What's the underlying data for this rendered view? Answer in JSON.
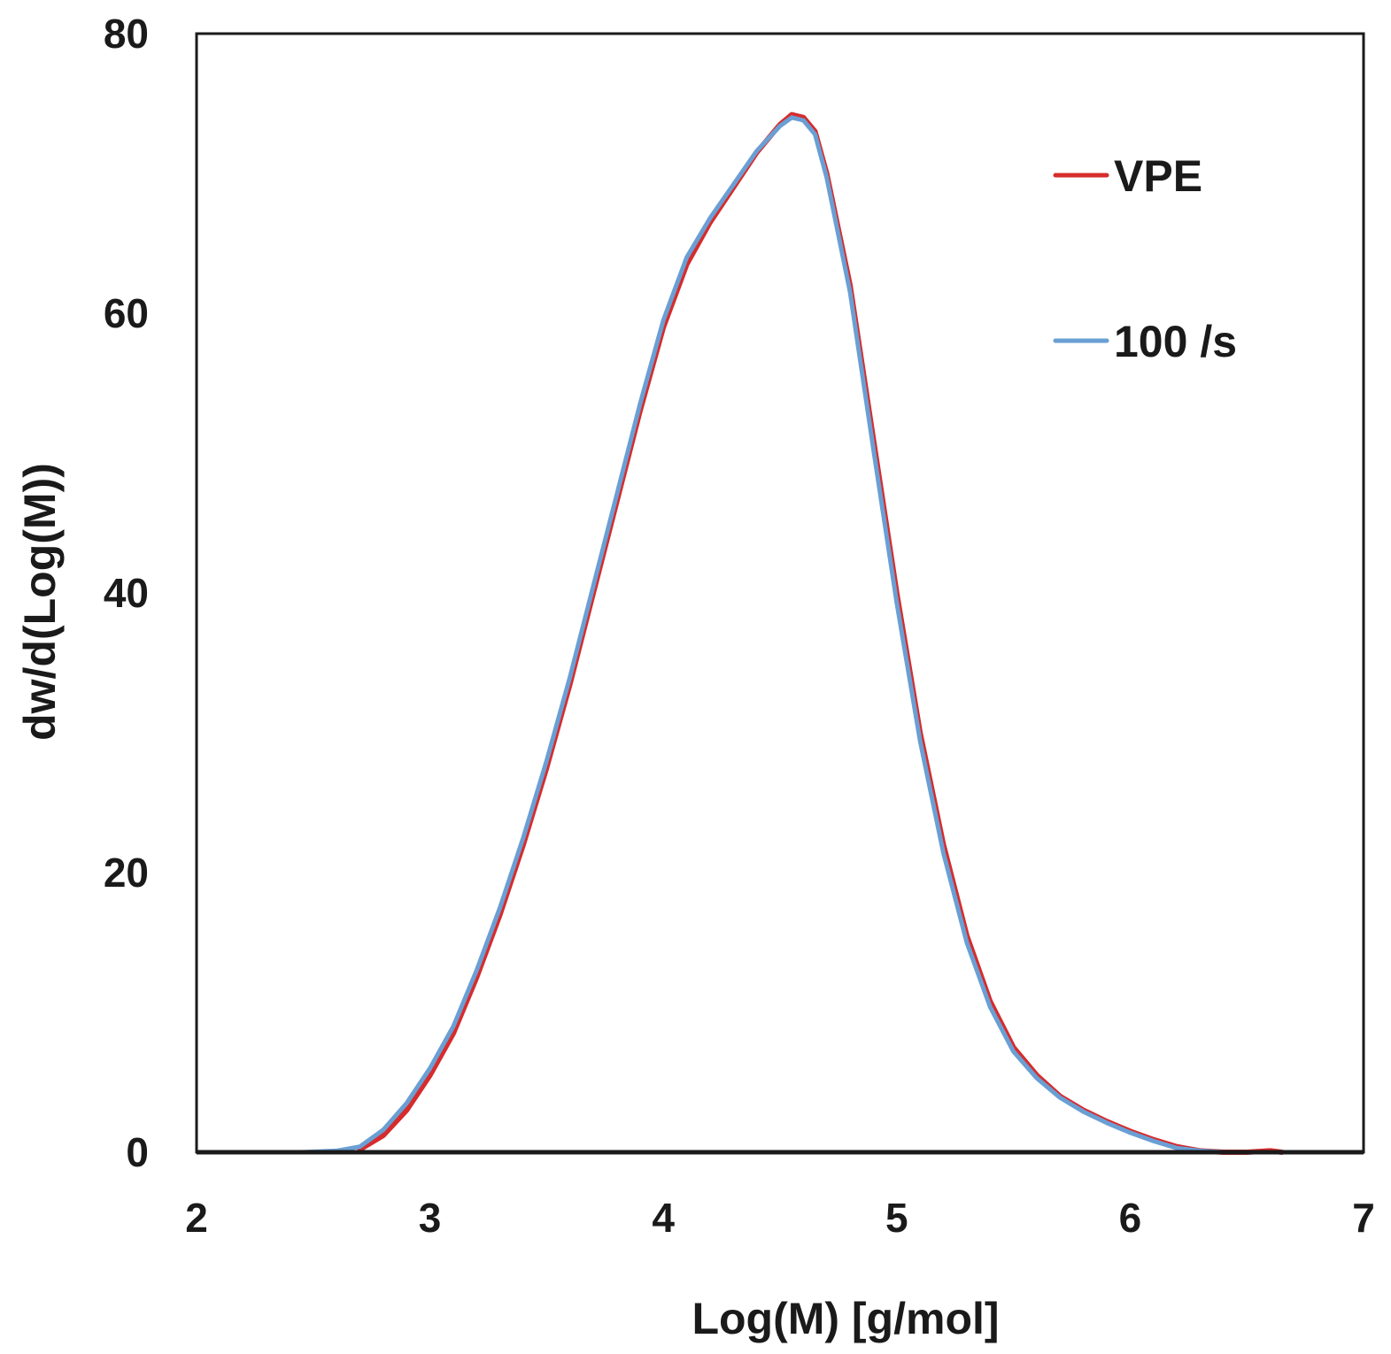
{
  "chart_data": {
    "type": "line",
    "title": "",
    "xlabel": "Log(M) [g/mol]",
    "ylabel": "dw/d(Log(M))",
    "xlim": [
      2,
      7
    ],
    "ylim": [
      0,
      80
    ],
    "xticks": [
      2,
      3,
      4,
      5,
      6,
      7
    ],
    "yticks": [
      0,
      20,
      40,
      60,
      80
    ],
    "grid": false,
    "legend": "top-right",
    "series": [
      {
        "name": "VPE",
        "color": "#d62c2c",
        "x": [
          2.7,
          2.8,
          2.9,
          3.0,
          3.1,
          3.2,
          3.3,
          3.4,
          3.5,
          3.6,
          3.7,
          3.8,
          3.9,
          4.0,
          4.1,
          4.2,
          4.3,
          4.4,
          4.5,
          4.55,
          4.6,
          4.65,
          4.7,
          4.8,
          4.9,
          5.0,
          5.1,
          5.2,
          5.3,
          5.4,
          5.5,
          5.6,
          5.7,
          5.8,
          5.9,
          6.0,
          6.1,
          6.2,
          6.3,
          6.4,
          6.5,
          6.6,
          6.65
        ],
        "y": [
          0.2,
          1.2,
          3.0,
          5.5,
          8.5,
          12.5,
          17.0,
          22.0,
          27.5,
          33.5,
          40.0,
          46.5,
          53.0,
          59.0,
          63.5,
          66.5,
          69.0,
          71.5,
          73.5,
          74.2,
          74.0,
          73.0,
          70.0,
          62.0,
          51.0,
          40.0,
          30.0,
          22.0,
          15.5,
          10.8,
          7.5,
          5.5,
          4.0,
          3.0,
          2.2,
          1.5,
          0.9,
          0.4,
          0.1,
          0.0,
          0.0,
          0.1,
          0.0
        ]
      },
      {
        "name": "100 /s",
        "color": "#6a9fd4",
        "x": [
          2.45,
          2.6,
          2.7,
          2.8,
          2.9,
          3.0,
          3.1,
          3.2,
          3.3,
          3.4,
          3.5,
          3.6,
          3.7,
          3.8,
          3.9,
          4.0,
          4.1,
          4.2,
          4.3,
          4.4,
          4.5,
          4.55,
          4.6,
          4.65,
          4.7,
          4.8,
          4.9,
          5.0,
          5.1,
          5.2,
          5.3,
          5.4,
          5.5,
          5.6,
          5.7,
          5.8,
          5.9,
          6.0,
          6.1,
          6.2,
          6.3,
          6.4,
          6.5
        ],
        "y": [
          0.0,
          0.1,
          0.4,
          1.6,
          3.5,
          6.0,
          9.0,
          13.0,
          17.5,
          22.5,
          28.0,
          34.0,
          40.5,
          47.0,
          53.5,
          59.5,
          64.0,
          66.8,
          69.2,
          71.6,
          73.4,
          74.0,
          73.8,
          72.8,
          69.7,
          61.5,
          50.3,
          39.3,
          29.4,
          21.4,
          15.0,
          10.4,
          7.2,
          5.3,
          3.9,
          2.9,
          2.1,
          1.4,
          0.8,
          0.3,
          0.1,
          0.0,
          0.0
        ]
      }
    ]
  }
}
